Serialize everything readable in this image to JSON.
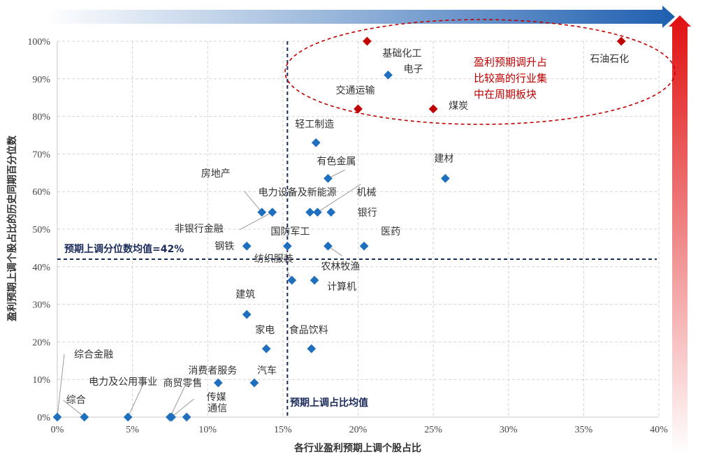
{
  "chart_data": {
    "type": "scatter",
    "xlabel": "各行业盈利预期上调个股占比",
    "ylabel": "盈利预期上调个股占比的历史同期百分位数",
    "xlim": [
      0,
      40
    ],
    "ylim": [
      0,
      100
    ],
    "x_ticks": [
      "0%",
      "5%",
      "10%",
      "15%",
      "20%",
      "25%",
      "30%",
      "35%",
      "40%"
    ],
    "y_ticks": [
      "0%",
      "10%",
      "20%",
      "30%",
      "40%",
      "50%",
      "60%",
      "70%",
      "80%",
      "90%",
      "100%"
    ],
    "grid": true,
    "colors": {
      "normal": "#1f6fbf",
      "highlight": "#c00000",
      "avg_line": "#1a2a5a"
    },
    "mean_x": 15.3,
    "mean_y": 42,
    "mean_x_label": "预期上调占比均值",
    "mean_y_label": "预期上调分位数均值=42%",
    "note": [
      "盈利预期调升占",
      "比较高的行业集",
      "中在周期板块"
    ],
    "points": [
      {
        "name": "石油石化",
        "x": 37.5,
        "y": 100,
        "hl": true
      },
      {
        "name": "基础化工",
        "x": 20.6,
        "y": 100,
        "hl": true
      },
      {
        "name": "电子",
        "x": 22.0,
        "y": 91,
        "hl": false
      },
      {
        "name": "交通运输",
        "x": 20.0,
        "y": 82,
        "hl": true
      },
      {
        "name": "煤炭",
        "x": 25.0,
        "y": 82,
        "hl": true
      },
      {
        "name": "轻工制造",
        "x": 17.2,
        "y": 73,
        "hl": false
      },
      {
        "name": "有色金属",
        "x": 18.0,
        "y": 63.5,
        "hl": false
      },
      {
        "name": "建材",
        "x": 25.8,
        "y": 63.5,
        "hl": false
      },
      {
        "name": "房地产",
        "x": 13.6,
        "y": 54.5,
        "hl": false
      },
      {
        "name": "非银行金融",
        "x": 14.3,
        "y": 54.5,
        "hl": false
      },
      {
        "name": "电力设备及新能源",
        "x": 16.8,
        "y": 54.5,
        "hl": false
      },
      {
        "name": "机械",
        "x": 17.3,
        "y": 54.5,
        "hl": false
      },
      {
        "name": "银行",
        "x": 18.2,
        "y": 54.5,
        "hl": false
      },
      {
        "name": "钢铁",
        "x": 12.6,
        "y": 45.5,
        "hl": false
      },
      {
        "name": "国防军工",
        "x": 15.3,
        "y": 45.5,
        "hl": false
      },
      {
        "name": "农林牧渔",
        "x": 18.0,
        "y": 45.5,
        "hl": false
      },
      {
        "name": "医药",
        "x": 20.4,
        "y": 45.5,
        "hl": false
      },
      {
        "name": "纺织服装",
        "x": 15.6,
        "y": 36.4,
        "hl": false
      },
      {
        "name": "计算机",
        "x": 17.1,
        "y": 36.4,
        "hl": false
      },
      {
        "name": "建筑",
        "x": 12.6,
        "y": 27.3,
        "hl": false
      },
      {
        "name": "家电",
        "x": 13.9,
        "y": 18.2,
        "hl": false
      },
      {
        "name": "食品饮料",
        "x": 16.9,
        "y": 18.2,
        "hl": false
      },
      {
        "name": "消费者服务",
        "x": 10.7,
        "y": 9.1,
        "hl": false
      },
      {
        "name": "汽车",
        "x": 13.1,
        "y": 9.1,
        "hl": false
      },
      {
        "name": "综合金融",
        "x": 0.0,
        "y": 0,
        "hl": false
      },
      {
        "name": "综合",
        "x": 1.8,
        "y": 0,
        "hl": false
      },
      {
        "name": "电力及公用事业",
        "x": 4.7,
        "y": 0,
        "hl": false
      },
      {
        "name": "商贸零售",
        "x": 7.5,
        "y": 0,
        "hl": false
      },
      {
        "name": "传媒",
        "x": 7.6,
        "y": 0,
        "hl": false
      },
      {
        "name": "通信",
        "x": 8.6,
        "y": 0,
        "hl": false
      }
    ]
  }
}
